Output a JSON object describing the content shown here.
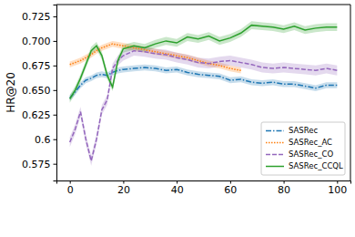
{
  "chart_data": {
    "type": "line",
    "y_label": "HR@20",
    "x": [
      0,
      2,
      4,
      6,
      8,
      10,
      12,
      14,
      16,
      18,
      20,
      24,
      28,
      32,
      36,
      40,
      44,
      48,
      52,
      56,
      60,
      64,
      68,
      72,
      76,
      80,
      84,
      88,
      92,
      96,
      100
    ],
    "series": [
      {
        "name": "SASRec",
        "color": "#1f77b4",
        "line_style": "dashdot",
        "error": 0.003,
        "values": [
          0.642,
          0.648,
          0.655,
          0.66,
          0.662,
          0.665,
          0.666,
          0.665,
          0.668,
          0.67,
          0.671,
          0.672,
          0.673,
          0.672,
          0.67,
          0.671,
          0.668,
          0.666,
          0.665,
          0.664,
          0.66,
          0.661,
          0.658,
          0.657,
          0.658,
          0.656,
          0.656,
          0.654,
          0.652,
          0.655,
          0.655
        ]
      },
      {
        "name": "SASRec_AC",
        "color": "#ff7f0e",
        "line_style": "dotted",
        "error": 0.003,
        "values": [
          0.676,
          0.678,
          0.68,
          0.683,
          0.686,
          0.69,
          0.693,
          0.695,
          0.697,
          0.696,
          0.695,
          0.693,
          0.691,
          0.689,
          0.687,
          0.685,
          0.683,
          0.68,
          0.677,
          0.675,
          0.672,
          0.67,
          null,
          null,
          null,
          null,
          null,
          null,
          null,
          null,
          null
        ]
      },
      {
        "name": "SASRec_CO",
        "color": "#9467bd",
        "line_style": "dashed",
        "error": 0.005,
        "values": [
          0.597,
          0.61,
          0.628,
          0.6,
          0.578,
          0.6,
          0.63,
          0.64,
          0.672,
          0.68,
          0.685,
          0.69,
          0.689,
          0.687,
          0.686,
          0.683,
          0.681,
          0.678,
          0.677,
          0.679,
          0.68,
          0.678,
          0.676,
          0.673,
          0.672,
          0.673,
          0.672,
          0.671,
          0.67,
          0.672,
          0.67
        ]
      },
      {
        "name": "SASRec_CCQL",
        "color": "#2ca02c",
        "line_style": "solid",
        "error": 0.004,
        "values": [
          0.641,
          0.65,
          0.662,
          0.676,
          0.69,
          0.695,
          0.685,
          0.665,
          0.653,
          0.68,
          0.692,
          0.695,
          0.693,
          0.697,
          0.7,
          0.698,
          0.704,
          0.702,
          0.705,
          0.7,
          0.703,
          0.708,
          0.716,
          0.715,
          0.714,
          0.712,
          0.715,
          0.711,
          0.713,
          0.714,
          0.714
        ]
      }
    ],
    "xlim": [
      -5,
      105
    ],
    "xticks": [
      0,
      20,
      40,
      60,
      80,
      100
    ],
    "ylim": [
      0.558,
      0.737
    ],
    "yticks": [
      0.575,
      0.6,
      {
        "value": 0.625,
        "label": "0.625"
      },
      {
        "value": 0.65,
        "label": "0.650"
      },
      {
        "value": 0.675,
        "label": "0.675"
      },
      {
        "value": 0.7,
        "label": "0.700"
      },
      {
        "value": 0.725,
        "label": "0.725"
      }
    ],
    "legend": "lower right",
    "grid": false
  }
}
